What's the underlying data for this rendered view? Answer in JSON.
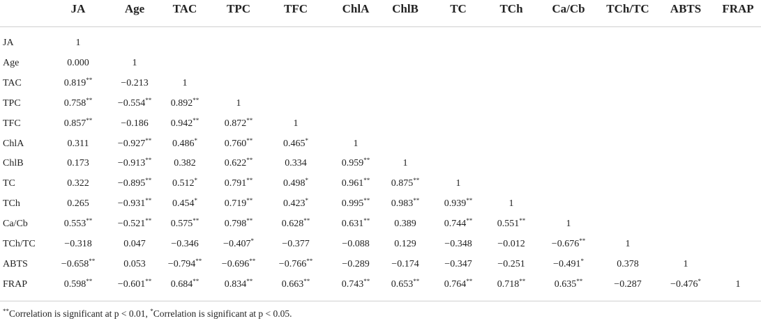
{
  "table": {
    "columns": [
      "JA",
      "Age",
      "TAC",
      "TPC",
      "TFC",
      "ChlA",
      "ChlB",
      "TC",
      "TCh",
      "Ca/Cb",
      "TCh/TC",
      "ABTS",
      "FRAP"
    ],
    "rows": [
      {
        "label": "JA",
        "cells": [
          "1"
        ]
      },
      {
        "label": "Age",
        "cells": [
          "0.000",
          "1"
        ]
      },
      {
        "label": "TAC",
        "cells": [
          "0.819**",
          "−0.213",
          "1"
        ]
      },
      {
        "label": "TPC",
        "cells": [
          "0.758**",
          "−0.554**",
          "0.892**",
          "1"
        ]
      },
      {
        "label": "TFC",
        "cells": [
          "0.857**",
          "−0.186",
          "0.942**",
          "0.872**",
          "1"
        ]
      },
      {
        "label": "ChlA",
        "cells": [
          "0.311",
          "−0.927**",
          "0.486*",
          "0.760**",
          "0.465*",
          "1"
        ]
      },
      {
        "label": "ChlB",
        "cells": [
          "0.173",
          "−0.913**",
          "0.382",
          "0.622**",
          "0.334",
          "0.959**",
          "1"
        ]
      },
      {
        "label": "TC",
        "cells": [
          "0.322",
          "−0.895**",
          "0.512*",
          "0.791**",
          "0.498*",
          "0.961**",
          "0.875**",
          "1"
        ]
      },
      {
        "label": "TCh",
        "cells": [
          "0.265",
          "−0.931**",
          "0.454*",
          "0.719**",
          "0.423*",
          "0.995**",
          "0.983**",
          "0.939**",
          "1"
        ]
      },
      {
        "label": "Ca/Cb",
        "cells": [
          "0.553**",
          "−0.521**",
          "0.575**",
          "0.798**",
          "0.628**",
          "0.631**",
          "0.389",
          "0.744**",
          "0.551**",
          "1"
        ]
      },
      {
        "label": "TCh/TC",
        "cells": [
          "−0.318",
          "0.047",
          "−0.346",
          "−0.407*",
          "−0.377",
          "−0.088",
          "0.129",
          "−0.348",
          "−0.012",
          "−0.676**",
          "1"
        ]
      },
      {
        "label": "ABTS",
        "cells": [
          "−0.658**",
          "0.053",
          "−0.794**",
          "−0.696**",
          "−0.766**",
          "−0.289",
          "−0.174",
          "−0.347",
          "−0.251",
          "−0.491*",
          "0.378",
          "1"
        ]
      },
      {
        "label": "FRAP",
        "cells": [
          "0.598**",
          "−0.601**",
          "0.684**",
          "0.834**",
          "0.663**",
          "0.743**",
          "0.653**",
          "0.764**",
          "0.718**",
          "0.635**",
          "−0.287",
          "−0.476*",
          "1"
        ]
      }
    ],
    "footnotes": [
      "**Correlation is significant at p < 0.01,",
      "*Correlation is significant at p < 0.05."
    ]
  }
}
